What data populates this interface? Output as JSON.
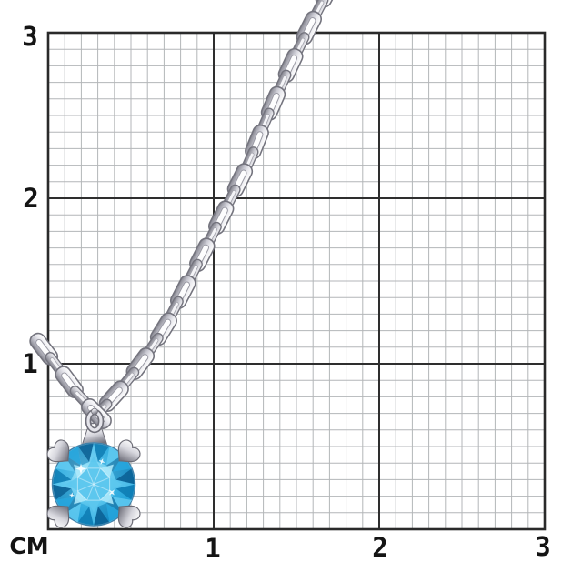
{
  "page": {
    "background": "#ffffff",
    "description": "Silver cable-chain necklace with round blue topaz solitaire pendant photographed on a centimeter sizing grid"
  },
  "ruler": {
    "unit_label": "СМ",
    "x_ticks": [
      "1",
      "2",
      "3"
    ],
    "y_ticks": [
      "1",
      "2",
      "3"
    ],
    "grid": {
      "minor_color": "#b3b6b8",
      "major_color": "#2e2e2e",
      "border_color": "#2a2a2a",
      "background": "#ffffff",
      "minor_cells_per_cm": 10
    },
    "text_color": "#141414"
  },
  "jewelry": {
    "chain": {
      "metal_outline": "#74747e",
      "metal_light": "#ffffff",
      "metal_mid": "#c9c9d2",
      "metal_shadow": "#84848e",
      "hole_color": "#fdfdfe"
    },
    "pendant": {
      "stone_bright": "#aee9fa",
      "stone_light": "#5cc7ee",
      "stone_mid": "#23a2d9",
      "stone_deep": "#0d7cb4",
      "stone_darkest": "#095e92",
      "sparkle": "#ffffff",
      "prong_light": "#ffffff",
      "prong_mid": "#d6d6dd",
      "prong_dark": "#72727d"
    }
  }
}
